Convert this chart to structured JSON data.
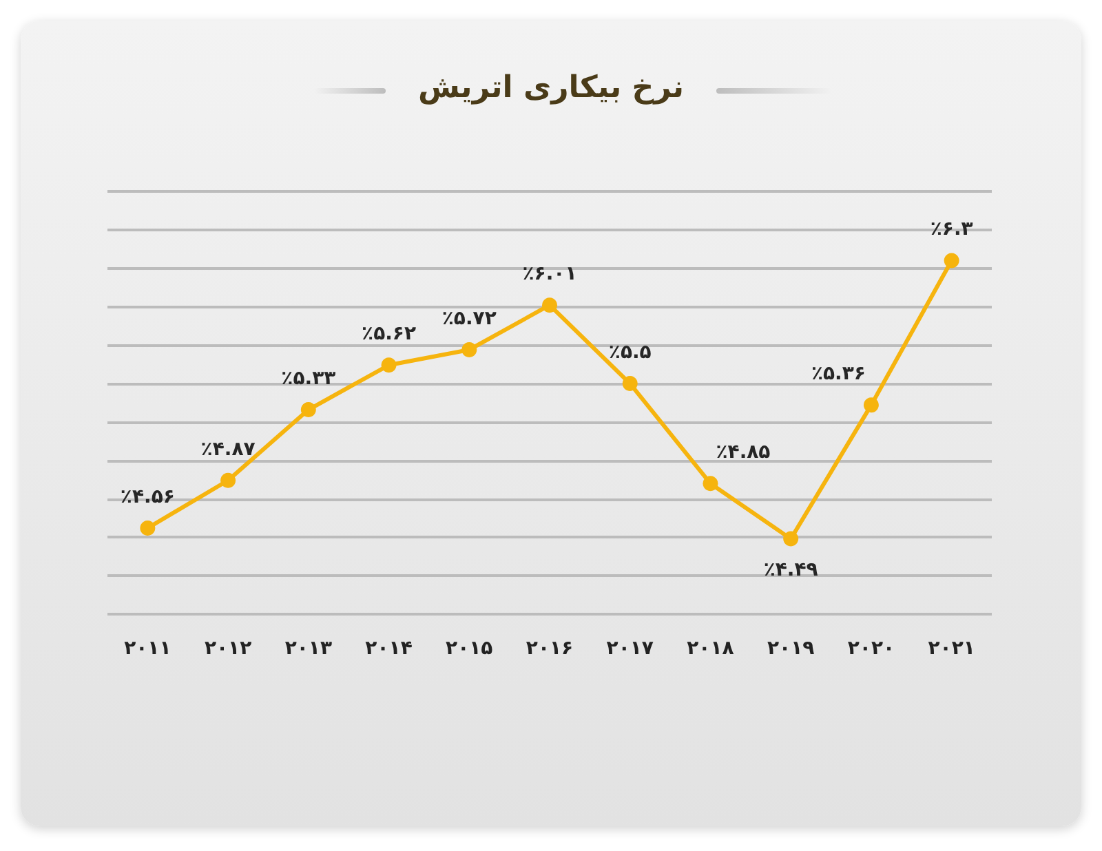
{
  "chart_data": {
    "type": "line",
    "title": "نرخ بیکاری اتریش",
    "categories": [
      "۲۰۱۱",
      "۲۰۱۲",
      "۲۰۱۳",
      "۲۰۱۴",
      "۲۰۱۵",
      "۲۰۱۶",
      "۲۰۱۷",
      "۲۰۱۸",
      "۲۰۱۹",
      "۲۰۲۰",
      "۲۰۲۱"
    ],
    "values": [
      4.56,
      4.87,
      5.33,
      5.62,
      5.72,
      6.01,
      5.5,
      4.85,
      4.49,
      5.36,
      6.3
    ],
    "value_labels": [
      "٪۴.۵۶",
      "٪۴.۸۷",
      "٪۵.۳۳",
      "٪۵.۶۲",
      "٪۵.۷۲",
      "٪۶.۰۱",
      "٪۵.۵",
      "٪۴.۸۵",
      "٪۴.۴۹",
      "٪۵.۳۶",
      "٪۶.۳"
    ],
    "color": "#f6b40e",
    "ylim": [
      4,
      6.75
    ],
    "yticks": [
      {
        "value": 4,
        "label": null
      },
      {
        "value": 4.25,
        "label": null
      },
      {
        "value": 4.5,
        "label": null
      },
      {
        "value": 4.75,
        "label": null
      },
      {
        "value": 5,
        "label": null
      },
      {
        "value": 5.25,
        "label": null
      },
      {
        "value": 5.5,
        "label": null
      },
      {
        "value": 5.75,
        "label": null
      },
      {
        "value": 6,
        "label": null
      },
      {
        "value": 6.25,
        "label": null
      },
      {
        "value": 6.5,
        "label": null
      },
      {
        "value": 6.75,
        "label": null
      }
    ],
    "grid": "y",
    "tick_labels": "x",
    "marker": "circle"
  }
}
